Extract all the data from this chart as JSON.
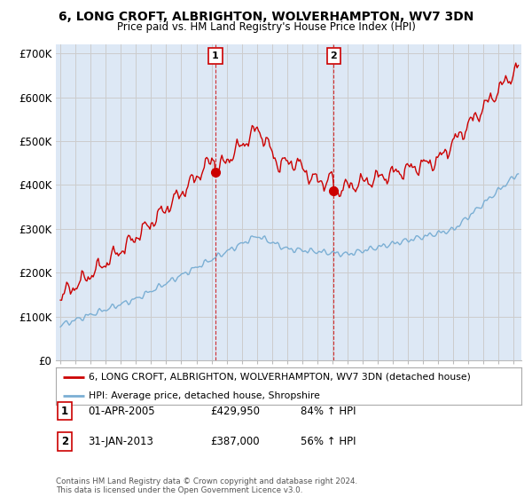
{
  "title": "6, LONG CROFT, ALBRIGHTON, WOLVERHAMPTON, WV7 3DN",
  "subtitle": "Price paid vs. HM Land Registry's House Price Index (HPI)",
  "ylabel_ticks": [
    "£0",
    "£100K",
    "£200K",
    "£300K",
    "£400K",
    "£500K",
    "£600K",
    "£700K"
  ],
  "yticks": [
    0,
    100000,
    200000,
    300000,
    400000,
    500000,
    600000,
    700000
  ],
  "ylim": [
    0,
    720000
  ],
  "xlim_start": 1994.7,
  "xlim_end": 2025.5,
  "sale1_x": 2005.25,
  "sale1_y": 429950,
  "sale1_label": "01-APR-2005",
  "sale1_price": "£429,950",
  "sale1_hpi": "84% ↑ HPI",
  "sale2_x": 2013.08,
  "sale2_y": 387000,
  "sale2_label": "31-JAN-2013",
  "sale2_price": "£387,000",
  "sale2_hpi": "56% ↑ HPI",
  "line1_color": "#cc0000",
  "line2_color": "#7bafd4",
  "shade_color": "#dde8f5",
  "plot_bg": "#ffffff",
  "grid_color": "#cccccc",
  "legend1": "6, LONG CROFT, ALBRIGHTON, WOLVERHAMPTON, WV7 3DN (detached house)",
  "legend2": "HPI: Average price, detached house, Shropshire",
  "footer": "Contains HM Land Registry data © Crown copyright and database right 2024.\nThis data is licensed under the Open Government Licence v3.0."
}
